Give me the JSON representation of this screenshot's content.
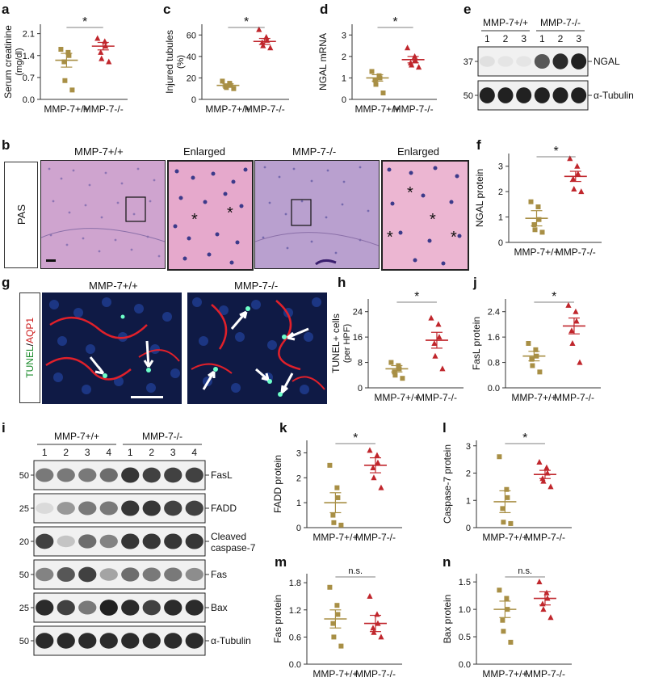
{
  "colors": {
    "wt": "#a88f45",
    "ko": "#c0262c",
    "blot_bg": "#f1f1f1",
    "band": "#151515",
    "pas_bg": "#d9a8c6",
    "nuclei": "#3c3a8a",
    "fluor_bg": "#0d1638"
  },
  "panel_letters": {
    "a": "a",
    "b": "b",
    "c": "c",
    "d": "d",
    "e": "e",
    "f": "f",
    "g": "g",
    "h": "h",
    "i": "i",
    "j": "j",
    "k": "k",
    "l": "l",
    "m": "m",
    "n": "n"
  },
  "charts": [
    {
      "id": "a",
      "type": "scatter",
      "ylabel": "Serum creatinine (mg/dl)",
      "categories": [
        "MMP-7+/+",
        "MMP-7-/-"
      ],
      "yticks": [
        0.0,
        0.7,
        1.4,
        2.1
      ],
      "ylim": [
        0,
        2.4
      ],
      "sig": "*",
      "points": [
        [
          1.6,
          1.5,
          1.4,
          1.2,
          0.6,
          0.3
        ],
        [
          1.95,
          1.85,
          1.7,
          1.5,
          1.3,
          1.2
        ]
      ],
      "mean": [
        1.25,
        1.7
      ],
      "sem": [
        0.22,
        0.12
      ]
    },
    {
      "id": "c",
      "type": "scatter",
      "ylabel": "Injured tubules (%)",
      "categories": [
        "MMP-7+/+",
        "MMP-7-/-"
      ],
      "yticks": [
        0,
        20,
        40,
        60
      ],
      "ylim": [
        0,
        70
      ],
      "sig": "*",
      "points": [
        [
          17,
          15,
          13,
          12,
          11,
          10
        ],
        [
          65,
          58,
          55,
          53,
          50,
          48
        ]
      ],
      "mean": [
        13,
        54
      ],
      "sem": [
        1.5,
        2.8
      ]
    },
    {
      "id": "d",
      "type": "scatter",
      "ylabel": "NGAL mRNA",
      "categories": [
        "MMP-7+/+",
        "MMP-7-/-"
      ],
      "yticks": [
        0,
        1,
        2,
        3
      ],
      "ylim": [
        0,
        3.5
      ],
      "sig": "*",
      "points": [
        [
          1.3,
          1.1,
          1.0,
          0.9,
          0.7,
          0.3
        ],
        [
          2.4,
          2.0,
          1.8,
          1.7,
          1.6,
          1.5
        ]
      ],
      "mean": [
        1.0,
        1.85
      ],
      "sem": [
        0.15,
        0.15
      ]
    },
    {
      "id": "f",
      "type": "scatter",
      "ylabel": "NGAL protein",
      "categories": [
        "MMP-7+/+",
        "MMP-7-/-"
      ],
      "yticks": [
        0,
        1,
        2,
        3
      ],
      "ylim": [
        0,
        3.5
      ],
      "sig": "*",
      "points": [
        [
          1.6,
          1.4,
          0.9,
          0.7,
          0.5,
          0.4
        ],
        [
          3.3,
          3.0,
          2.7,
          2.5,
          2.1,
          2.0
        ]
      ],
      "mean": [
        0.95,
        2.6
      ],
      "sem": [
        0.3,
        0.2
      ]
    },
    {
      "id": "h",
      "type": "scatter",
      "ylabel": "TUNEL+ cells (per HPF)",
      "categories": [
        "MMP-7+/+",
        "MMP-7-/-"
      ],
      "yticks": [
        0,
        8,
        16,
        24
      ],
      "ylim": [
        0,
        28
      ],
      "sig": "*",
      "points": [
        [
          8,
          7,
          6,
          5,
          4,
          3
        ],
        [
          22,
          20,
          16,
          14,
          10,
          6
        ]
      ],
      "mean": [
        6,
        15
      ],
      "sem": [
        1.0,
        2.5
      ]
    },
    {
      "id": "j",
      "type": "scatter",
      "ylabel": "FasL protein",
      "categories": [
        "MMP-7+/+",
        "MMP-7-/-"
      ],
      "yticks": [
        0.0,
        0.8,
        1.6,
        2.4
      ],
      "ylim": [
        0,
        2.8
      ],
      "sig": "*",
      "points": [
        [
          1.4,
          1.2,
          1.0,
          0.9,
          0.7,
          0.5
        ],
        [
          2.6,
          2.4,
          2.1,
          1.8,
          1.4,
          0.8
        ]
      ],
      "mean": [
        1.0,
        1.95
      ],
      "sem": [
        0.15,
        0.25
      ]
    },
    {
      "id": "k",
      "type": "scatter",
      "ylabel": "FADD protein",
      "categories": [
        "MMP-7+/+",
        "MMP-7-/-"
      ],
      "yticks": [
        0,
        1,
        2,
        3
      ],
      "ylim": [
        0,
        3.5
      ],
      "sig": "*",
      "points": [
        [
          2.5,
          1.6,
          1.2,
          0.5,
          0.2,
          0.1
        ],
        [
          3.1,
          2.9,
          2.6,
          2.4,
          2.0,
          1.6
        ]
      ],
      "mean": [
        1.0,
        2.5
      ],
      "sem": [
        0.4,
        0.3
      ]
    },
    {
      "id": "l",
      "type": "scatter",
      "ylabel": "Caspase-7 protein",
      "categories": [
        "MMP-7+/+",
        "MMP-7-/-"
      ],
      "yticks": [
        0,
        1,
        2,
        3
      ],
      "ylim": [
        0,
        3.2
      ],
      "sig": "*",
      "points": [
        [
          2.6,
          1.4,
          1.1,
          0.7,
          0.2,
          0.15
        ],
        [
          2.4,
          2.2,
          2.0,
          1.8,
          1.7,
          1.5
        ]
      ],
      "mean": [
        0.95,
        1.95
      ],
      "sem": [
        0.4,
        0.15
      ]
    },
    {
      "id": "m",
      "type": "scatter",
      "ylabel": "Fas protein",
      "categories": [
        "MMP-7+/+",
        "MMP-7-/-"
      ],
      "yticks": [
        0.0,
        0.6,
        1.2,
        1.8
      ],
      "ylim": [
        0,
        2.0
      ],
      "sig": "n.s.",
      "points": [
        [
          1.7,
          1.3,
          1.1,
          0.9,
          0.6,
          0.4
        ],
        [
          1.5,
          1.1,
          0.9,
          0.8,
          0.7,
          0.6
        ]
      ],
      "mean": [
        1.0,
        0.9
      ],
      "sem": [
        0.2,
        0.18
      ]
    },
    {
      "id": "n",
      "type": "scatter",
      "ylabel": "Bax protein",
      "categories": [
        "MMP-7+/+",
        "MMP-7-/-"
      ],
      "yticks": [
        0.0,
        0.5,
        1.0,
        1.5
      ],
      "ylim": [
        0,
        1.65
      ],
      "sig": "n.s.",
      "points": [
        [
          1.35,
          1.2,
          1.0,
          0.8,
          0.6,
          0.4
        ],
        [
          1.5,
          1.3,
          1.2,
          1.1,
          1.0,
          0.85
        ]
      ],
      "mean": [
        1.0,
        1.2
      ],
      "sem": [
        0.15,
        0.12
      ]
    }
  ],
  "blot_e": {
    "group_labels": [
      "MMP-7+/+",
      "MMP-7-/-"
    ],
    "lanes": [
      "1",
      "2",
      "3",
      "1",
      "2",
      "3"
    ],
    "rows": [
      {
        "label": "NGAL",
        "mw": "37",
        "intensity": [
          0.08,
          0.05,
          0.04,
          0.7,
          0.9,
          0.95
        ]
      },
      {
        "label": "α-Tubulin",
        "mw": "50",
        "intensity": [
          0.95,
          0.95,
          0.95,
          0.95,
          0.95,
          0.95
        ]
      }
    ]
  },
  "blot_i": {
    "group_labels": [
      "MMP-7+/+",
      "MMP-7-/-"
    ],
    "lanes": [
      "1",
      "2",
      "3",
      "4",
      "1",
      "2",
      "3",
      "4"
    ],
    "rows": [
      {
        "label": "FasL",
        "mw": "50",
        "intensity": [
          0.55,
          0.55,
          0.55,
          0.6,
          0.85,
          0.8,
          0.8,
          0.8
        ]
      },
      {
        "label": "FADD",
        "mw": "25",
        "intensity": [
          0.1,
          0.4,
          0.55,
          0.55,
          0.85,
          0.85,
          0.8,
          0.8
        ]
      },
      {
        "label": "Cleaved caspase-7",
        "mw": "20",
        "intensity": [
          0.8,
          0.2,
          0.6,
          0.5,
          0.85,
          0.85,
          0.85,
          0.85
        ]
      },
      {
        "label": "Fas",
        "mw": "50",
        "intensity": [
          0.5,
          0.7,
          0.8,
          0.35,
          0.6,
          0.55,
          0.55,
          0.45
        ]
      },
      {
        "label": "Bax",
        "mw": "25",
        "intensity": [
          0.9,
          0.8,
          0.55,
          0.95,
          0.9,
          0.8,
          0.9,
          0.9
        ]
      },
      {
        "label": "α-Tubulin",
        "mw": "50",
        "intensity": [
          0.9,
          0.9,
          0.9,
          0.9,
          0.9,
          0.9,
          0.9,
          0.9
        ]
      }
    ]
  },
  "micro_b": {
    "side_label": "PAS",
    "panels": [
      "MMP-7+/+",
      "Enlarged",
      "MMP-7-/-",
      "Enlarged"
    ],
    "asterisk": "*"
  },
  "micro_g": {
    "stain_a": "TUNEL",
    "stain_sep": "/",
    "stain_b": "AQP1",
    "panels": [
      "MMP-7+/+",
      "MMP-7-/-"
    ]
  }
}
